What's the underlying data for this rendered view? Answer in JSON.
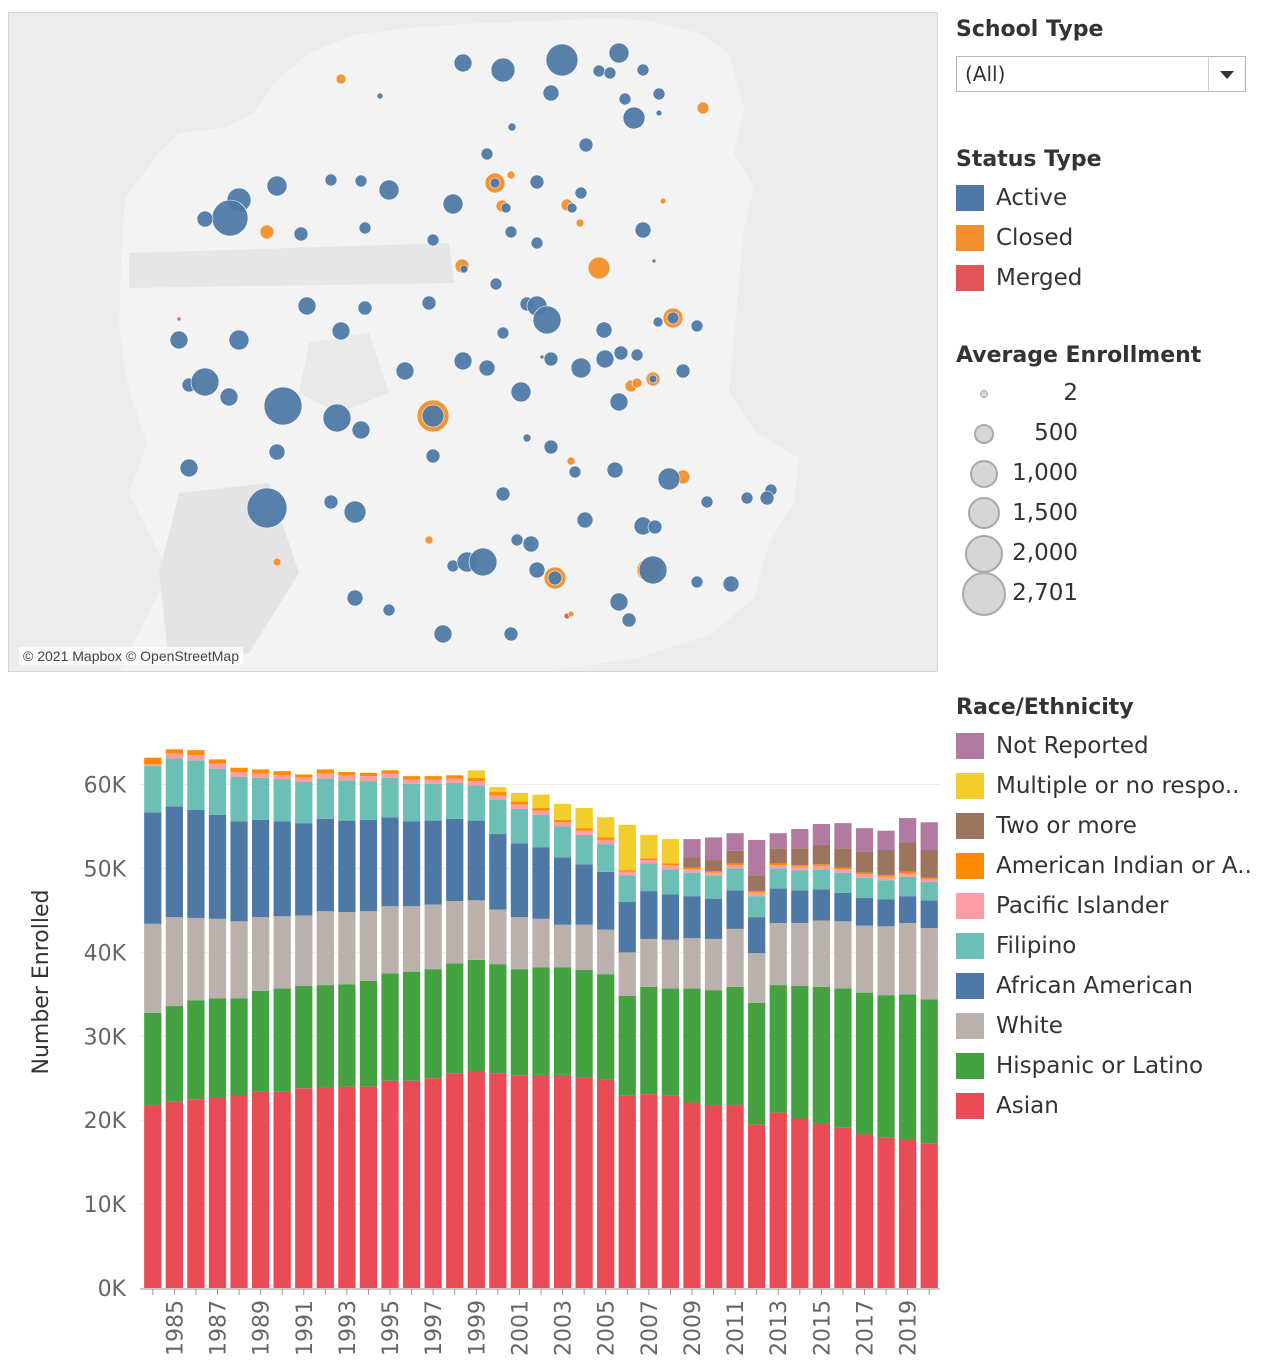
{
  "map": {
    "attribution": "© 2021 Mapbox © OpenStreetMap",
    "status_colors": {
      "Active": "#4e79a7",
      "Closed": "#f28e2b",
      "Merged": "#e15759"
    }
  },
  "filters": {
    "school_type": {
      "title": "School Type",
      "selected": "(All)"
    }
  },
  "status_legend": {
    "title": "Status Type",
    "items": [
      {
        "label": "Active",
        "color": "#4e79a7"
      },
      {
        "label": "Closed",
        "color": "#f28e2b"
      },
      {
        "label": "Merged",
        "color": "#e15759"
      }
    ]
  },
  "size_legend": {
    "title": "Average Enrollment",
    "items": [
      "2",
      "500",
      "1,000",
      "1,500",
      "2,000",
      "2,701"
    ]
  },
  "race_legend": {
    "title": "Race/Ethnicity",
    "items": [
      {
        "label": "Not Reported",
        "color": "#b07aa1"
      },
      {
        "label": "Multiple or no respo..",
        "color": "#f1ce2b"
      },
      {
        "label": "Two or more",
        "color": "#9c755f"
      },
      {
        "label": "American Indian or A..",
        "color": "#ff8c00"
      },
      {
        "label": "Pacific Islander",
        "color": "#ff9da7"
      },
      {
        "label": "Filipino",
        "color": "#6cbfb4"
      },
      {
        "label": "African American",
        "color": "#4e79a7"
      },
      {
        "label": "White",
        "color": "#bab0ac"
      },
      {
        "label": "Hispanic or Latino",
        "color": "#44a340"
      },
      {
        "label": "Asian",
        "color": "#e94b57"
      }
    ]
  },
  "chart_data": {
    "type": "bar",
    "stacked": true,
    "ylabel": "Number Enrolled",
    "ylim": [
      0,
      66500
    ],
    "yticks": [
      0,
      10000,
      20000,
      30000,
      40000,
      50000,
      60000
    ],
    "ytick_labels": [
      "0K",
      "10K",
      "20K",
      "30K",
      "40K",
      "50K",
      "60K"
    ],
    "grid": true,
    "categories": [
      "1984",
      "1985",
      "1986",
      "1987",
      "1988",
      "1989",
      "1990",
      "1991",
      "1992",
      "1993",
      "1994",
      "1995",
      "1996",
      "1997",
      "1998",
      "1999",
      "2000",
      "2001",
      "2002",
      "2003",
      "2004",
      "2005",
      "2006",
      "2007",
      "2008",
      "2009",
      "2010",
      "2011",
      "2012",
      "2013",
      "2014",
      "2015",
      "2016",
      "2017",
      "2018",
      "2019",
      "2020"
    ],
    "xtick_labels": [
      "1985",
      "1987",
      "1989",
      "1991",
      "1993",
      "1995",
      "1997",
      "1999",
      "2001",
      "2003",
      "2005",
      "2007",
      "2009",
      "2011",
      "2013",
      "2015",
      "2017",
      "2019"
    ],
    "series": [
      {
        "name": "Asian",
        "color": "#e94b57",
        "values": [
          21800,
          22200,
          22500,
          22700,
          23000,
          23400,
          23400,
          23800,
          23900,
          24000,
          24000,
          24700,
          24700,
          25000,
          25600,
          25800,
          25600,
          25300,
          25400,
          25400,
          25100,
          24800,
          22900,
          23100,
          22900,
          22100,
          21800,
          21800,
          19500,
          20900,
          20200,
          19600,
          19100,
          18300,
          17900,
          17700,
          17200
        ]
      },
      {
        "name": "Hispanic or Latino",
        "color": "#44a340",
        "values": [
          11000,
          11400,
          11800,
          11800,
          11500,
          12000,
          12300,
          12200,
          12200,
          12200,
          12600,
          12800,
          13000,
          13000,
          13100,
          13300,
          13000,
          12700,
          12800,
          12800,
          12800,
          12600,
          11900,
          12800,
          12800,
          13600,
          13700,
          14100,
          14500,
          15200,
          15800,
          16300,
          16600,
          16900,
          17000,
          17300,
          17200
        ]
      },
      {
        "name": "White",
        "color": "#bab0ac",
        "values": [
          10600,
          10600,
          9800,
          9500,
          9200,
          8800,
          8600,
          8400,
          8800,
          8600,
          8300,
          8000,
          7800,
          7700,
          7400,
          7100,
          6500,
          6200,
          5800,
          5100,
          5400,
          5300,
          5200,
          5700,
          5800,
          6000,
          6100,
          6900,
          5900,
          7400,
          7500,
          7900,
          8000,
          8000,
          8200,
          8500,
          8500
        ]
      },
      {
        "name": "African American",
        "color": "#4e79a7",
        "values": [
          13300,
          13200,
          12900,
          12400,
          11900,
          11600,
          11300,
          11000,
          11000,
          10900,
          10900,
          10600,
          10100,
          10000,
          9800,
          9500,
          9000,
          8800,
          8500,
          8000,
          7200,
          6900,
          6000,
          5700,
          5400,
          5000,
          4800,
          4600,
          4300,
          4100,
          3900,
          3700,
          3400,
          3300,
          3200,
          3200,
          3300
        ]
      },
      {
        "name": "Filipino",
        "color": "#6cbfb4",
        "values": [
          5500,
          5700,
          5900,
          5500,
          5300,
          5000,
          5000,
          4900,
          4800,
          4800,
          4600,
          4700,
          4500,
          4400,
          4300,
          4200,
          4100,
          4100,
          3900,
          3700,
          3500,
          3300,
          3200,
          3300,
          3000,
          2800,
          2700,
          2600,
          2500,
          2400,
          2400,
          2400,
          2400,
          2400,
          2300,
          2300,
          2200
        ]
      },
      {
        "name": "Pacific Islander",
        "color": "#ff9da7",
        "values": [
          200,
          600,
          600,
          600,
          600,
          500,
          500,
          500,
          600,
          600,
          600,
          500,
          500,
          500,
          500,
          500,
          500,
          500,
          500,
          500,
          500,
          500,
          400,
          400,
          500,
          400,
          400,
          400,
          400,
          400,
          400,
          400,
          400,
          400,
          400,
          400,
          300
        ]
      },
      {
        "name": "American Indian or A..",
        "color": "#ff8c00",
        "values": [
          800,
          500,
          600,
          500,
          500,
          500,
          500,
          400,
          500,
          400,
          400,
          400,
          400,
          400,
          400,
          400,
          400,
          400,
          300,
          300,
          300,
          300,
          200,
          200,
          200,
          200,
          200,
          200,
          200,
          200,
          200,
          200,
          200,
          200,
          200,
          200,
          200
        ]
      },
      {
        "name": "Two or more",
        "color": "#9c755f",
        "values": [
          0,
          0,
          0,
          0,
          0,
          0,
          0,
          0,
          0,
          0,
          0,
          0,
          0,
          0,
          0,
          0,
          0,
          0,
          0,
          0,
          0,
          0,
          0,
          0,
          0,
          1200,
          1300,
          1500,
          1900,
          1800,
          2000,
          2300,
          2300,
          2500,
          3000,
          3500,
          3300
        ]
      },
      {
        "name": "Multiple or no respo..",
        "color": "#f1ce2b",
        "values": [
          0,
          0,
          0,
          0,
          0,
          0,
          0,
          0,
          0,
          0,
          0,
          0,
          0,
          0,
          0,
          900,
          600,
          1000,
          1600,
          1900,
          2400,
          2400,
          5400,
          2800,
          2900,
          0,
          0,
          0,
          0,
          0,
          0,
          0,
          0,
          0,
          0,
          0,
          0
        ]
      },
      {
        "name": "Not Reported",
        "color": "#b07aa1",
        "values": [
          0,
          0,
          0,
          0,
          0,
          0,
          0,
          0,
          0,
          0,
          0,
          0,
          0,
          0,
          0,
          0,
          0,
          0,
          0,
          0,
          0,
          0,
          0,
          0,
          0,
          2200,
          2700,
          2100,
          4200,
          1800,
          2300,
          2500,
          3000,
          2800,
          2300,
          2900,
          3300
        ]
      }
    ]
  }
}
